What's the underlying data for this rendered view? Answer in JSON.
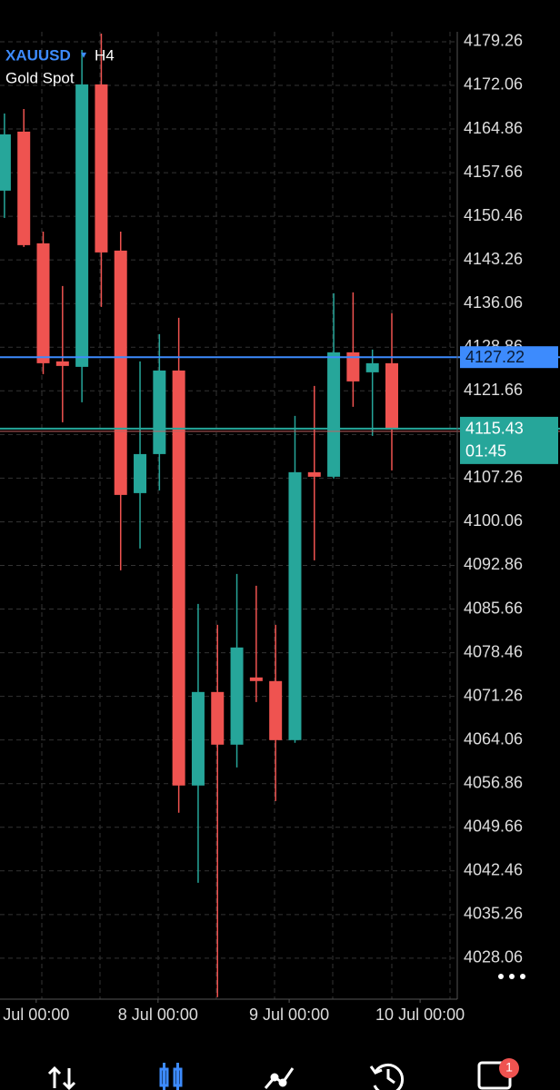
{
  "chart_data": {
    "type": "candlestick",
    "symbol": "XAUUSD",
    "symbol_marker": "▾",
    "timeframe": "H4",
    "description": "Gold Spot",
    "up_color": "#26a69a",
    "down_color": "#ef5350",
    "open": [
      4154.69,
      4164.43,
      4146.0,
      4126.52,
      4125.62,
      4172.22,
      4144.8,
      4104.79,
      4111.23,
      4125.02,
      4056.55,
      4071.98,
      4063.29,
      4074.38,
      4073.78,
      4064.04,
      4108.24,
      4107.49,
      4128.02,
      4124.72,
      4126.22
    ],
    "high": [
      4167.42,
      4168.17,
      4147.94,
      4138.95,
      4177.91,
      4180.6,
      4147.94,
      4126.52,
      4131.01,
      4133.71,
      4086.51,
      4083.07,
      4091.46,
      4089.51,
      4083.07,
      4117.53,
      4122.47,
      4137.76,
      4137.91,
      4128.47,
      4134.46
    ],
    "low": [
      4150.19,
      4145.4,
      4124.42,
      4116.48,
      4119.77,
      4135.51,
      4092.05,
      4095.65,
      4105.24,
      4052.05,
      4040.51,
      4021.63,
      4059.54,
      4070.33,
      4053.99,
      4063.59,
      4093.7,
      4107.19,
      4119.03,
      4114.23,
      4108.54
    ],
    "close": [
      4163.98,
      4145.7,
      4126.22,
      4125.77,
      4172.22,
      4144.5,
      4104.49,
      4111.23,
      4125.02,
      4056.55,
      4071.98,
      4063.29,
      4079.32,
      4073.78,
      4064.04,
      4108.24,
      4107.49,
      4128.02,
      4123.22,
      4126.22,
      4115.28
    ],
    "xlim": [
      -0.23,
      23.38
    ],
    "xticks": [
      {
        "value": 1.64,
        "label": "Jul 00:00"
      },
      {
        "value": 7.93,
        "label": "8 Jul 00:00"
      },
      {
        "value": 14.7,
        "label": "9 Jul 00:00"
      },
      {
        "value": 21.46,
        "label": "10 Jul 00:00"
      }
    ],
    "ylim": [
      4021.3,
      4180.9
    ],
    "yticks": [
      4179.26,
      4172.06,
      4164.86,
      4157.66,
      4150.46,
      4143.26,
      4136.06,
      4128.86,
      4121.66,
      4114.46,
      4107.26,
      4100.06,
      4092.86,
      4085.66,
      4078.46,
      4071.26,
      4064.06,
      4056.86,
      4049.66,
      4042.46,
      4035.26,
      4028.06
    ],
    "grid": true,
    "price_lines": [
      {
        "value": 4127.22,
        "color": "#3d8bfd"
      },
      {
        "value": 4115.43,
        "color": "#26a69a",
        "timer": "01:45"
      }
    ],
    "notification_badge": 1
  }
}
